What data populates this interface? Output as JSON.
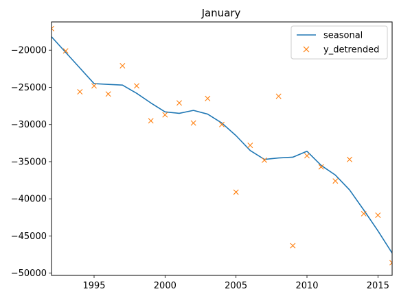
{
  "chart_data": {
    "type": "line",
    "title": "January",
    "xlabel": "",
    "ylabel": "",
    "xlim": [
      1992,
      2016
    ],
    "ylim": [
      -50300,
      -16200
    ],
    "xticks": [
      1995,
      2000,
      2005,
      2010,
      2015
    ],
    "yticks": [
      -50000,
      -45000,
      -40000,
      -35000,
      -30000,
      -25000,
      -20000
    ],
    "xtick_labels": [
      "1995",
      "2000",
      "2005",
      "2010",
      "2015"
    ],
    "ytick_labels": [
      "−50000",
      "−45000",
      "−40000",
      "−35000",
      "−30000",
      "−25000",
      "−20000"
    ],
    "grid": false,
    "legend_position": "top-right",
    "series": [
      {
        "name": "seasonal",
        "kind": "line",
        "color": "#1f77b4",
        "x": [
          1992,
          1993,
          1994,
          1995,
          1996,
          1997,
          1998,
          1999,
          2000,
          2001,
          2002,
          2003,
          2004,
          2005,
          2006,
          2007,
          2008,
          2009,
          2010,
          2011,
          2012,
          2013,
          2014,
          2015,
          2016
        ],
        "y": [
          -18200,
          -20300,
          -22400,
          -24500,
          -24600,
          -24700,
          -25800,
          -27100,
          -28300,
          -28500,
          -28100,
          -28600,
          -29800,
          -31500,
          -33500,
          -34700,
          -34500,
          -34400,
          -33600,
          -35500,
          -36800,
          -38800,
          -41500,
          -44300,
          -47300
        ]
      },
      {
        "name": "y_detrended",
        "kind": "scatter",
        "marker": "x",
        "color": "#ff7f0e",
        "x": [
          1992,
          1993,
          1994,
          1995,
          1996,
          1997,
          1998,
          1999,
          2000,
          2001,
          2002,
          2003,
          2004,
          2005,
          2006,
          2007,
          2008,
          2009,
          2010,
          2011,
          2012,
          2013,
          2014,
          2015,
          2016
        ],
        "y": [
          -17100,
          -20100,
          -25600,
          -24800,
          -25900,
          -22100,
          -24800,
          -29500,
          -28700,
          -27100,
          -29800,
          -26500,
          -30000,
          -39100,
          -32800,
          -34800,
          -26200,
          -46300,
          -34200,
          -35700,
          -37600,
          -34700,
          -42000,
          -42200,
          -48600
        ]
      }
    ]
  }
}
